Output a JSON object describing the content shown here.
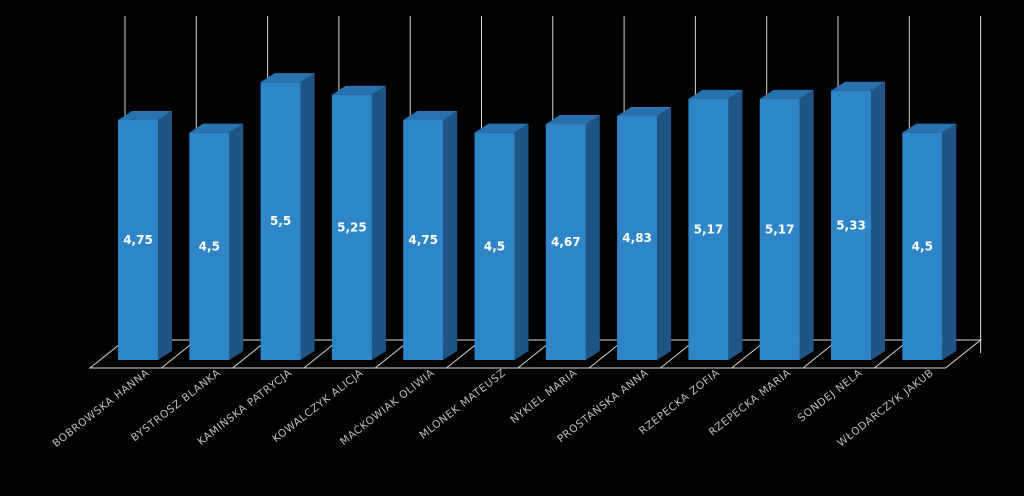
{
  "chart_data": {
    "type": "bar",
    "three_d": true,
    "title": "",
    "xlabel": "",
    "ylabel": "",
    "grid": "vertical lines between categories",
    "legend": "none",
    "ylim": [
      0,
      5.8
    ],
    "categories": [
      "BOBROWSKA HANNA",
      "BYSTROSZ BLANKA",
      "KAMIŃSKA PATRYCJA",
      "KOWALCZYK ALICJA",
      "MAĆKOWIAK OLIWIA",
      "MLONEK MATEUSZ",
      "NYKIEL MARIA",
      "PROSTAŃSKA ANNA",
      "RZEPECKA ZOFIA",
      "RZEPECKA MARIA",
      "SONDEJ NELA",
      "WŁODARCZYK JAKUB"
    ],
    "values": [
      4.75,
      4.5,
      5.5,
      5.25,
      4.75,
      4.5,
      4.67,
      4.83,
      5.17,
      5.17,
      5.33,
      4.5
    ],
    "value_labels": [
      "4,75",
      "4,5",
      "5,5",
      "5,25",
      "4,75",
      "4,5",
      "4,67",
      "4,83",
      "5,17",
      "5,17",
      "5,33",
      "4,5"
    ],
    "colors": {
      "background": "#000000",
      "bar_front": "#2e86c8",
      "bar_top": "#2872b0",
      "bar_side": "#1e5585",
      "grid": "#d9d9d9",
      "value_text": "#ffffff",
      "category_text": "#bfbfbf"
    }
  }
}
